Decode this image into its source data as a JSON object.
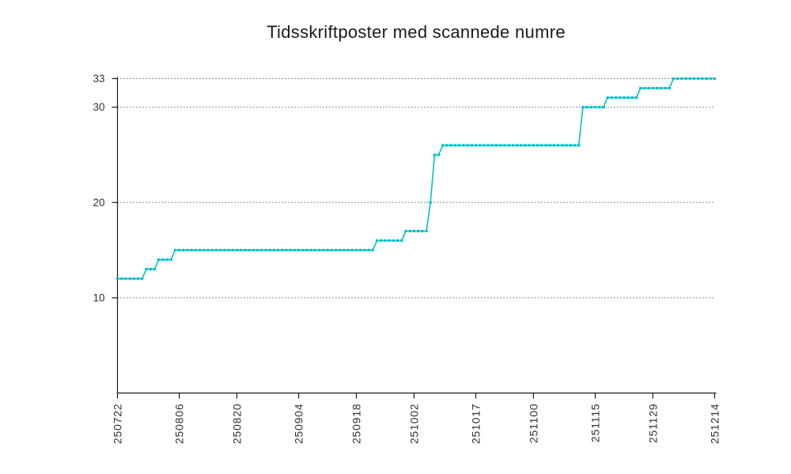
{
  "chart_data": {
    "type": "line",
    "title": "Tidsskriftposter med scannede numre",
    "xlabel": "",
    "ylabel": "",
    "legend": "none",
    "grid": "horizontal-dotted",
    "marker": "square",
    "line_color": "#00c1c9",
    "axis_color": "#1a1a1a",
    "grid_color": "#1a1a1a",
    "tick_label_color": "#303030",
    "ylim": [
      0,
      33
    ],
    "y_ticks": [
      10,
      20,
      30,
      33
    ],
    "y_tick_labels": [
      "10",
      "20",
      "30",
      "33"
    ],
    "x_tick_labels": [
      "250722",
      "250806",
      "250820",
      "250904",
      "250918",
      "251002",
      "251017",
      "251100",
      "251115",
      "251129",
      "251214"
    ],
    "x_tick_day_positions": [
      0,
      15,
      29,
      44,
      58,
      72,
      87,
      101,
      116,
      130,
      145
    ],
    "x_days_span": 145,
    "series": [
      {
        "name": "Tidsskriftposter med scannede numre",
        "values_by_day": [
          12,
          12,
          12,
          12,
          12,
          12,
          12,
          13,
          13,
          13,
          14,
          14,
          14,
          14,
          15,
          15,
          15,
          15,
          15,
          15,
          15,
          15,
          15,
          15,
          15,
          15,
          15,
          15,
          15,
          15,
          15,
          15,
          15,
          15,
          15,
          15,
          15,
          15,
          15,
          15,
          15,
          15,
          15,
          15,
          15,
          15,
          15,
          15,
          15,
          15,
          15,
          15,
          15,
          15,
          15,
          15,
          15,
          15,
          15,
          15,
          15,
          15,
          15,
          16,
          16,
          16,
          16,
          16,
          16,
          16,
          17,
          17,
          17,
          17,
          17,
          17,
          20,
          25,
          25,
          26,
          26,
          26,
          26,
          26,
          26,
          26,
          26,
          26,
          26,
          26,
          26,
          26,
          26,
          26,
          26,
          26,
          26,
          26,
          26,
          26,
          26,
          26,
          26,
          26,
          26,
          26,
          26,
          26,
          26,
          26,
          26,
          26,
          26,
          30,
          30,
          30,
          30,
          30,
          30,
          31,
          31,
          31,
          31,
          31,
          31,
          31,
          31,
          32,
          32,
          32,
          32,
          32,
          32,
          32,
          32,
          33,
          33,
          33,
          33,
          33,
          33,
          33,
          33,
          33,
          33,
          33
        ]
      }
    ]
  }
}
